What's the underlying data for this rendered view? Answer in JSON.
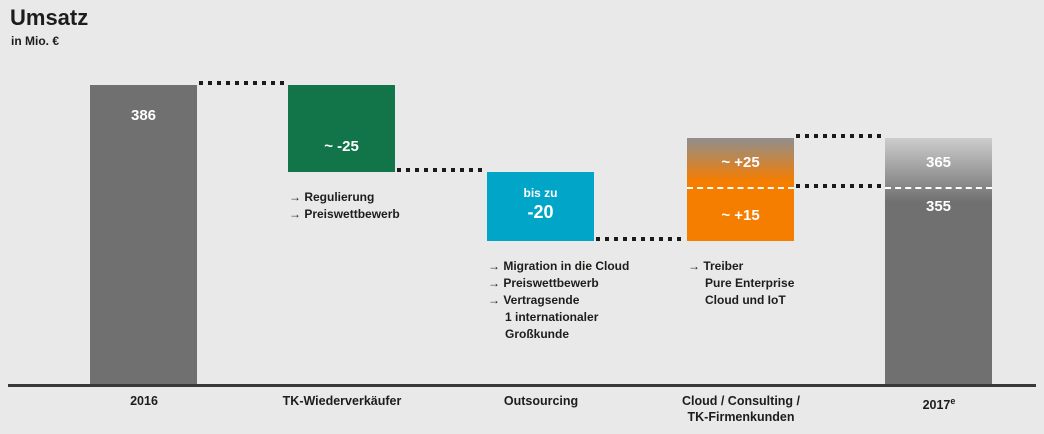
{
  "header": {
    "title": "Umsatz",
    "subtitle": "in Mio. €"
  },
  "colors": {
    "background": "#e9e9e9",
    "bar_gray": "#707070",
    "bar_green": "#127549",
    "bar_cyan": "#00a5c8",
    "bar_orange": "#f57d00",
    "text": "#1d1d1b",
    "dashed_divider": "#ffffff",
    "dotted_connector": "#1b1b1b"
  },
  "bars": {
    "start": {
      "value": "386",
      "axis": "2016"
    },
    "reseller": {
      "value": "~ -25",
      "axis": "TK-Wiederverkäufer",
      "notes": {
        "n1": "→ Regulierung",
        "n2": "→ Preiswettbewerb"
      }
    },
    "outsourcing": {
      "value_prefix": "bis zu",
      "value": "-20",
      "axis": "Outsourcing",
      "notes": {
        "n1": "→ Migration in die Cloud",
        "n2": "→ Preiswettbewerb",
        "n3": "→ Vertragsende",
        "n4": "1 internationaler",
        "n5": "Großkunde"
      }
    },
    "cloud": {
      "value_high": "~ +25",
      "value_low": "~ +15",
      "axis_line1": "Cloud / Consulting /",
      "axis_line2": "TK-Firmenkunden",
      "notes": {
        "n1": "→ Treiber",
        "n2": "Pure Enterprise",
        "n3": "Cloud und IoT"
      }
    },
    "end": {
      "value_high": "365",
      "value_low": "355",
      "axis": "2017",
      "axis_sup": "e"
    }
  },
  "chart_data": {
    "type": "bar",
    "subtype": "waterfall",
    "title": "Umsatz",
    "unit": "Mio. €",
    "categories": [
      "2016",
      "TK-Wiederverkäufer",
      "Outsourcing",
      "Cloud / Consulting / TK-Firmenkunden",
      "2017e"
    ],
    "steps": [
      {
        "category": "2016",
        "role": "start_total",
        "value": 386
      },
      {
        "category": "TK-Wiederverkäufer",
        "role": "decrease",
        "value": -25,
        "label": "~ -25",
        "drivers": [
          "Regulierung",
          "Preiswettbewerb"
        ]
      },
      {
        "category": "Outsourcing",
        "role": "decrease",
        "value": -20,
        "label": "bis zu -20",
        "drivers": [
          "Migration in die Cloud",
          "Preiswettbewerb",
          "Vertragsende 1 internationaler Großkunde"
        ]
      },
      {
        "category": "Cloud / Consulting / TK-Firmenkunden",
        "role": "increase",
        "value_min": 15,
        "value_max": 25,
        "label_min": "~ +15",
        "label_max": "~ +25",
        "drivers": [
          "Treiber: Pure Enterprise Cloud und IoT"
        ]
      },
      {
        "category": "2017e",
        "role": "end_total",
        "value_min": 355,
        "value_max": 365
      }
    ],
    "grid": false,
    "legend": "none"
  }
}
